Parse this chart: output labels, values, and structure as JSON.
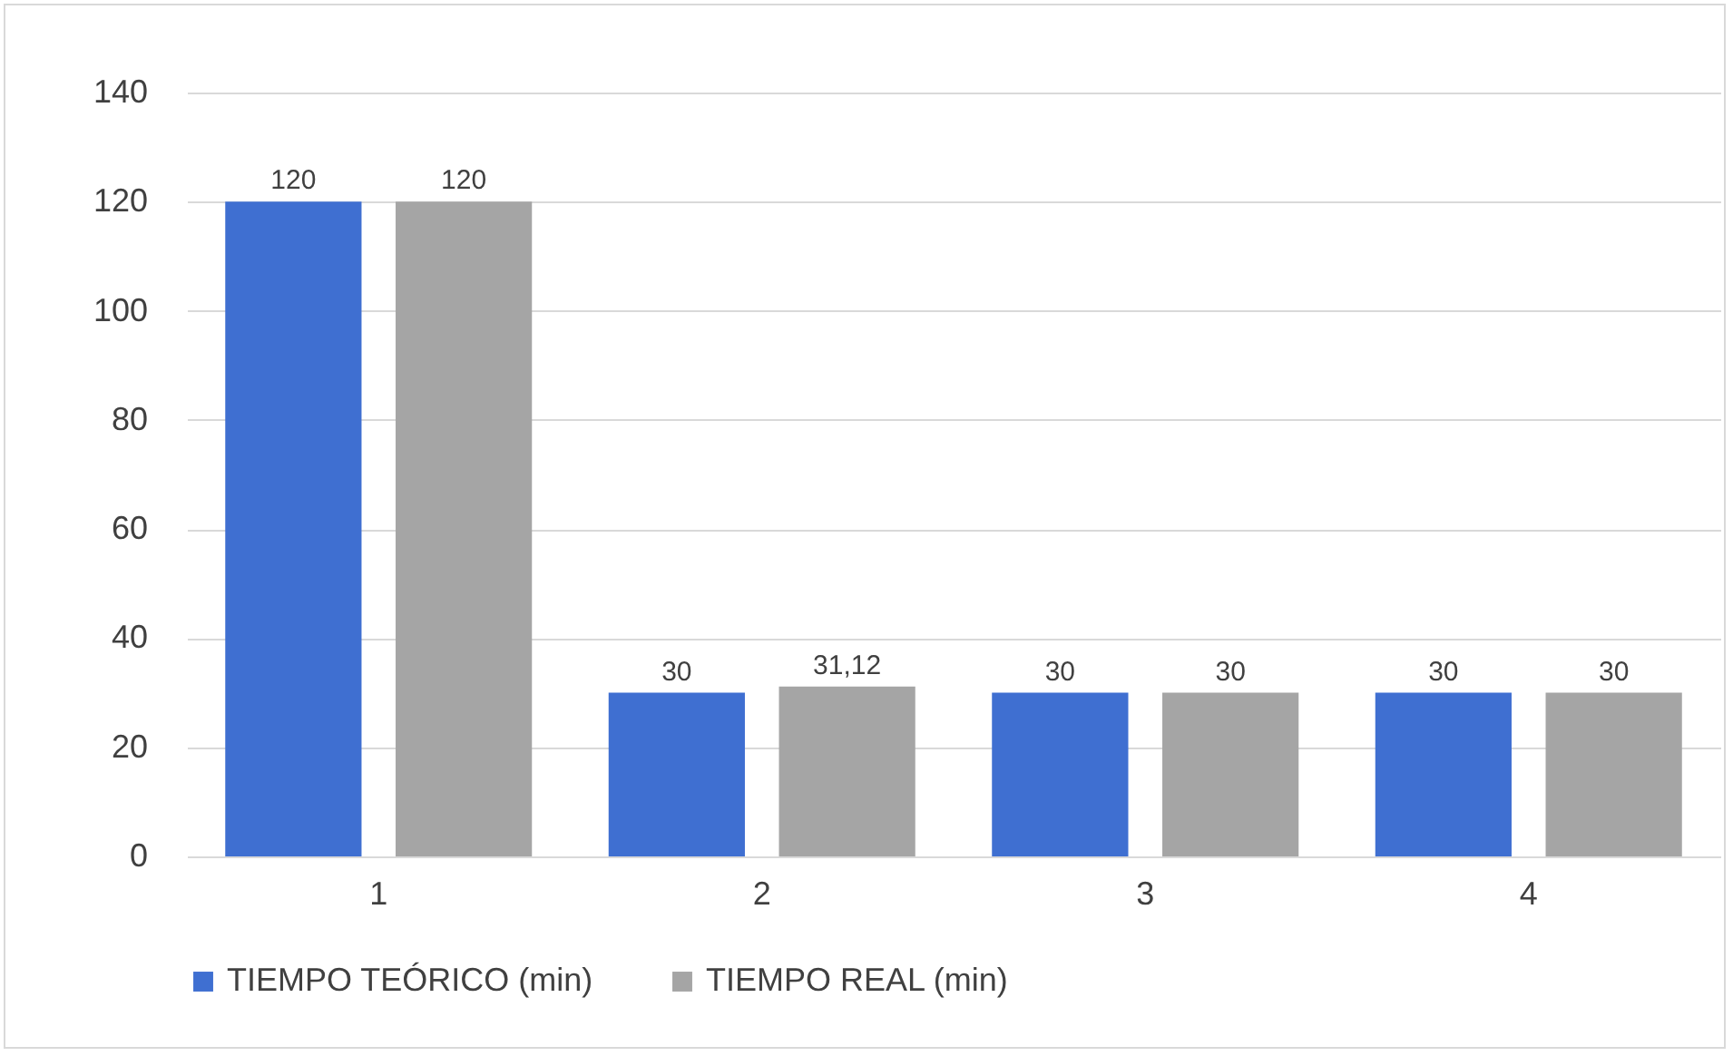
{
  "chart_data": {
    "type": "bar",
    "categories": [
      "1",
      "2",
      "3",
      "4"
    ],
    "series": [
      {
        "name": "TIEMPO TEÓRICO (min)",
        "color": "#3f6fd1",
        "values": [
          120,
          30,
          30,
          30
        ],
        "value_labels": [
          "120",
          "30",
          "30",
          "30"
        ]
      },
      {
        "name": "TIEMPO REAL (min)",
        "color": "#a5a5a5",
        "values": [
          120,
          31.12,
          30,
          30
        ],
        "value_labels": [
          "120",
          "31,12",
          "30",
          "30"
        ]
      }
    ],
    "ylim": [
      0,
      140
    ],
    "yticks": [
      0,
      20,
      40,
      60,
      80,
      100,
      120,
      140
    ],
    "grid": "y",
    "legend": "bottom"
  }
}
